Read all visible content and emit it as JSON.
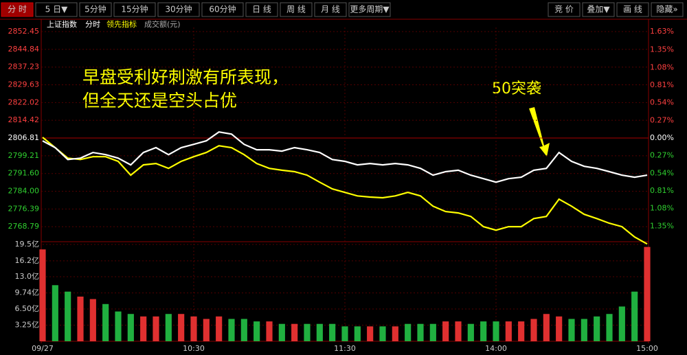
{
  "toolbar": {
    "left": [
      "分 时",
      "5 日▼",
      "5分钟",
      "15分钟",
      "30分钟",
      "60分钟",
      "日 线",
      "周 线",
      "月 线",
      "更多周期▼"
    ],
    "right": [
      "竞 价",
      "叠加▼",
      "画 线",
      "隐藏»"
    ]
  },
  "chart_data": {
    "type": "line",
    "index_name": "上证指数",
    "grid": true,
    "categories": [
      "09/27",
      null,
      null,
      null,
      null,
      null,
      null,
      null,
      null,
      null,
      null,
      null,
      "10:30",
      null,
      null,
      null,
      null,
      null,
      null,
      null,
      null,
      null,
      null,
      null,
      "11:30",
      null,
      null,
      null,
      null,
      null,
      null,
      null,
      null,
      null,
      null,
      null,
      "14:00",
      null,
      null,
      null,
      null,
      null,
      null,
      null,
      null,
      null,
      null,
      null,
      "15:00"
    ],
    "series": [
      {
        "name": "分时",
        "color": "#ffffff",
        "values": [
          2805.6,
          2802.7,
          2797.6,
          2798.2,
          2800.6,
          2799.7,
          2798.2,
          2795.3,
          2800.6,
          2802.7,
          2799.7,
          2802.7,
          2804.1,
          2805.6,
          2809.4,
          2808.5,
          2804.1,
          2801.8,
          2801.8,
          2801.2,
          2802.7,
          2801.8,
          2800.6,
          2797.6,
          2796.8,
          2795.3,
          2795.9,
          2795.3,
          2795.9,
          2795.3,
          2793.8,
          2790.9,
          2792.4,
          2793.0,
          2790.9,
          2789.4,
          2787.9,
          2789.4,
          2790.0,
          2793.0,
          2793.8,
          2800.6,
          2796.8,
          2794.7,
          2793.8,
          2792.4,
          2790.9,
          2790.0,
          2790.9
        ]
      },
      {
        "name": "领先指标",
        "color": "#ffff00",
        "values": [
          2807.1,
          2802.7,
          2798.2,
          2797.6,
          2798.8,
          2798.8,
          2796.8,
          2790.9,
          2795.3,
          2795.9,
          2793.8,
          2796.8,
          2798.8,
          2800.6,
          2803.5,
          2802.7,
          2799.7,
          2795.9,
          2793.8,
          2793.0,
          2792.4,
          2790.9,
          2787.9,
          2785.0,
          2783.5,
          2782.0,
          2781.5,
          2781.2,
          2782.0,
          2783.5,
          2782.0,
          2777.6,
          2775.3,
          2774.7,
          2773.2,
          2768.8,
          2767.3,
          2768.8,
          2768.8,
          2772.3,
          2773.2,
          2780.6,
          2777.6,
          2774.1,
          2772.3,
          2770.3,
          2768.8,
          2764.4,
          2761.4
        ]
      }
    ],
    "ylim": [
      2761.19,
      2852.45
    ],
    "yticks": [
      2852.45,
      2844.84,
      2837.23,
      2829.63,
      2822.02,
      2814.42,
      2806.81,
      2799.21,
      {
        "value": 2791.6,
        "label": "2791.60"
      },
      {
        "value": 2784,
        "label": "2784.00"
      },
      2776.39,
      2768.79
    ],
    "y2lim": [
      -1.63,
      1.63
    ],
    "y2ticks": [
      {
        "value": 1.63,
        "label": "1.63%"
      },
      {
        "value": 1.35,
        "label": "1.35%"
      },
      {
        "value": 1.08,
        "label": "1.08%"
      },
      {
        "value": 0.81,
        "label": "0.81%"
      },
      {
        "value": 0.54,
        "label": "0.54%"
      },
      {
        "value": 0.27,
        "label": "0.27%"
      },
      {
        "value": 0,
        "label": "0.00%"
      },
      {
        "value": -0.27,
        "label": "0.27%"
      },
      {
        "value": -0.54,
        "label": "0.54%"
      },
      {
        "value": -0.81,
        "label": "0.81%"
      },
      {
        "value": -1.08,
        "label": "1.08%"
      },
      {
        "value": -1.35,
        "label": "1.35%"
      }
    ],
    "volume": {
      "name": "成交额(元)",
      "values": [
        18.5,
        11.3,
        10,
        9,
        8.5,
        7.5,
        6,
        5.5,
        5,
        5,
        5.5,
        5.5,
        5,
        4.5,
        5,
        4.5,
        4.5,
        4,
        4,
        3.5,
        3.5,
        3.5,
        3.5,
        3.5,
        3,
        3,
        3,
        3,
        3,
        3.5,
        3.5,
        3.5,
        4,
        4,
        3.5,
        4,
        4,
        4,
        4,
        4.5,
        5.5,
        5,
        4.5,
        4.5,
        5,
        5.5,
        7,
        10,
        19
      ],
      "ylim": [
        0,
        19.5
      ],
      "yticks": [
        {
          "value": 19.5,
          "label": "19.5亿"
        },
        {
          "value": 16.2,
          "label": "16.2亿"
        },
        {
          "value": 13.0,
          "label": "13.0亿"
        },
        {
          "value": 9.74,
          "label": "9.74亿"
        },
        {
          "value": 6.5,
          "label": "6.50亿"
        },
        {
          "value": 3.25,
          "label": "3.25亿"
        }
      ]
    },
    "annotations": [
      "早盘受利好刺激有所表现，",
      "但全天还是空头占优",
      "50突袭"
    ]
  }
}
